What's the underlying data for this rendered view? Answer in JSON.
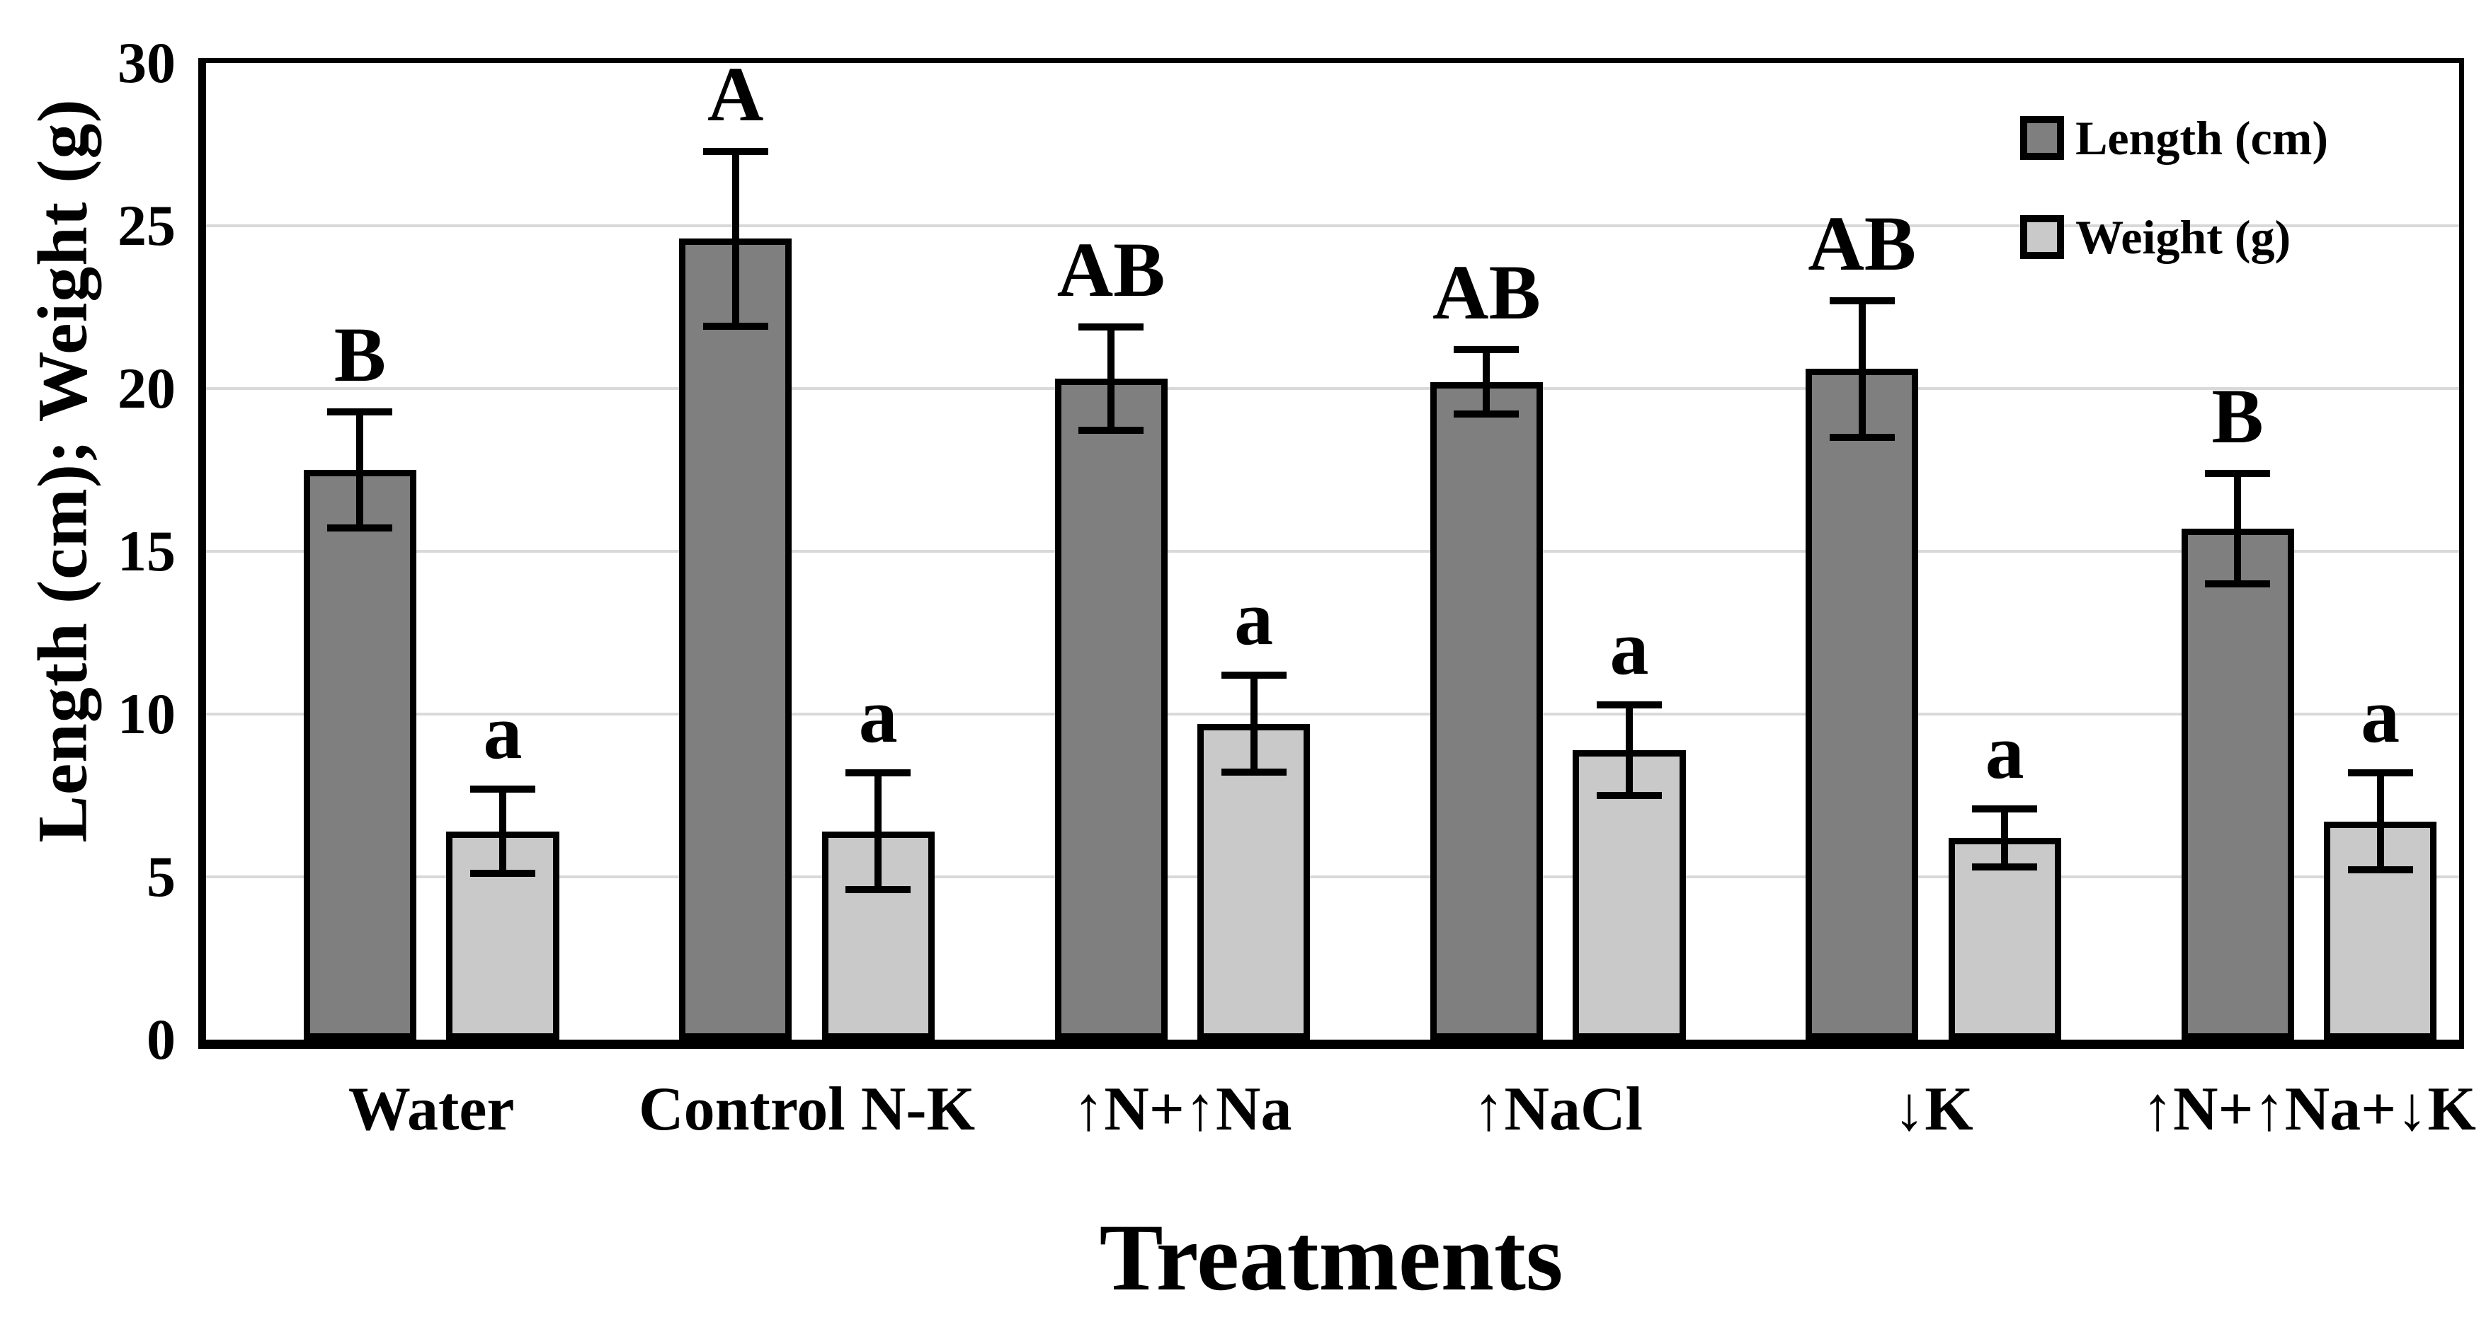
{
  "chart_data": {
    "type": "bar",
    "title": "",
    "xlabel": "Treatments",
    "ylabel": "Length (cm); Weight (g)",
    "ylim": [
      0,
      30
    ],
    "ytick_step": 5,
    "yticks": [
      0,
      5,
      10,
      15,
      20,
      25,
      30
    ],
    "grid": "horizontal gridlines at each 5-unit tick",
    "legend_position": "top-right inside plot",
    "categories": [
      "Water",
      "Control N-K",
      "↑N+↑Na",
      "↑NaCl",
      "↓K",
      "↑N+↑Na+↓K"
    ],
    "series": [
      {
        "name": "Length (cm)",
        "color": "#7F7F7F",
        "values": [
          17.5,
          24.6,
          20.3,
          20.2,
          20.6,
          15.7
        ],
        "errors": [
          1.9,
          2.8,
          1.7,
          1.1,
          2.2,
          1.8
        ],
        "sig_letters": [
          "B",
          "A",
          "AB",
          "AB",
          "AB",
          "B"
        ]
      },
      {
        "name": "Weight (g)",
        "color": "#C9C9C9",
        "values": [
          6.4,
          6.4,
          9.7,
          8.9,
          6.2,
          6.7
        ],
        "errors": [
          1.4,
          1.9,
          1.6,
          1.5,
          1.0,
          1.6
        ],
        "sig_letters": [
          "a",
          "a",
          "a",
          "a",
          "a",
          "a"
        ]
      }
    ],
    "colors": {
      "bar_outline": "#000000",
      "error_bar": "#000000",
      "gridline": "#D9D9D9",
      "axis": "#000000",
      "background": "#FFFFFF",
      "text": "#000000"
    }
  }
}
